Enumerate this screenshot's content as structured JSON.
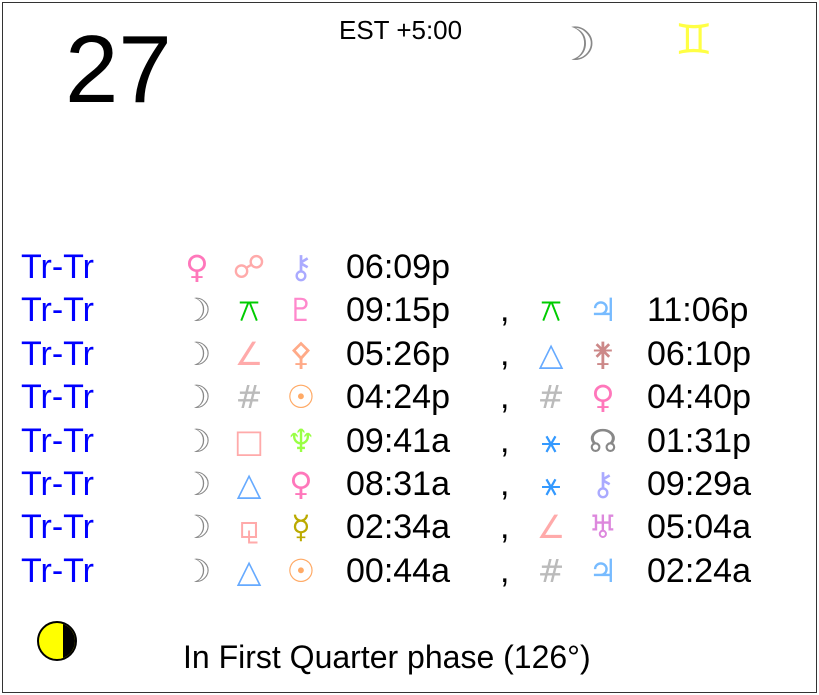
{
  "day": "27",
  "timezone": "EST +5:00",
  "moon_sign": {
    "planet_glyph": "☽",
    "sign_glyph": "♊",
    "planet_color": "#888888",
    "sign_color": "#ffff44"
  },
  "rows": [
    {
      "label": "Tr-Tr",
      "a1": "♀",
      "a1c": "#ff77bb",
      "asp": "☍",
      "aspc": "#ffaaaa",
      "b1": "⚷",
      "b1c": "#aaaaff",
      "t1": "06:09p",
      "sep": "",
      "asp2": "",
      "asp2c": "",
      "b2": "",
      "b2c": "",
      "t2": ""
    },
    {
      "label": "Tr-Tr",
      "a1": "☽",
      "a1c": "#888888",
      "asp": "⚻",
      "aspc": "#00cc00",
      "b1": "♇",
      "b1c": "#ff88cc",
      "t1": "09:15p",
      "sep": ",",
      "asp2": "⚻",
      "asp2c": "#00cc00",
      "b2": "♃",
      "b2c": "#77bbff",
      "t2": "11:06p"
    },
    {
      "label": "Tr-Tr",
      "a1": "☽",
      "a1c": "#888888",
      "asp": "∠",
      "aspc": "#ffaaaa",
      "b1": "⚴",
      "b1c": "#ffaa88",
      "t1": "05:26p",
      "sep": ",",
      "asp2": "△",
      "asp2c": "#66aaff",
      "b2": "⚵",
      "b2c": "#cc8888",
      "t2": "06:10p"
    },
    {
      "label": "Tr-Tr",
      "a1": "☽",
      "a1c": "#888888",
      "asp": "#",
      "aspc": "#bbbbbb",
      "b1": "☉",
      "b1c": "#ffaa66",
      "t1": "04:24p",
      "sep": ",",
      "asp2": "#",
      "asp2c": "#bbbbbb",
      "b2": "♀",
      "b2c": "#ff77bb",
      "t2": "04:40p"
    },
    {
      "label": "Tr-Tr",
      "a1": "☽",
      "a1c": "#888888",
      "asp": "□",
      "aspc": "#ffaaaa",
      "b1": "♆",
      "b1c": "#99ff44",
      "t1": "09:41a",
      "sep": ",",
      "asp2": "⚹",
      "asp2c": "#3399ff",
      "b2": "☊",
      "b2c": "#888888",
      "t2": "01:31p"
    },
    {
      "label": "Tr-Tr",
      "a1": "☽",
      "a1c": "#888888",
      "asp": "△",
      "aspc": "#66aaff",
      "b1": "♀",
      "b1c": "#ff77bb",
      "t1": "08:31a",
      "sep": ",",
      "asp2": "⚹",
      "asp2c": "#3399ff",
      "b2": "⚷",
      "b2c": "#aaaaff",
      "t2": "09:29a"
    },
    {
      "label": "Tr-Tr",
      "a1": "☽",
      "a1c": "#888888",
      "asp": "⚼",
      "aspc": "#ffaaaa",
      "b1": "☿",
      "b1c": "#bbaa00",
      "t1": "02:34a",
      "sep": ",",
      "asp2": "∠",
      "asp2c": "#ffaaaa",
      "b2": "♅",
      "b2c": "#dd88dd",
      "t2": "05:04a"
    },
    {
      "label": "Tr-Tr",
      "a1": "☽",
      "a1c": "#888888",
      "asp": "△",
      "aspc": "#66aaff",
      "b1": "☉",
      "b1c": "#ffaa66",
      "t1": "00:44a",
      "sep": ",",
      "asp2": "#",
      "asp2c": "#bbbbbb",
      "b2": "♃",
      "b2c": "#77bbff",
      "t2": "02:24a"
    }
  ],
  "phase_text": "In First Quarter phase (126°)"
}
